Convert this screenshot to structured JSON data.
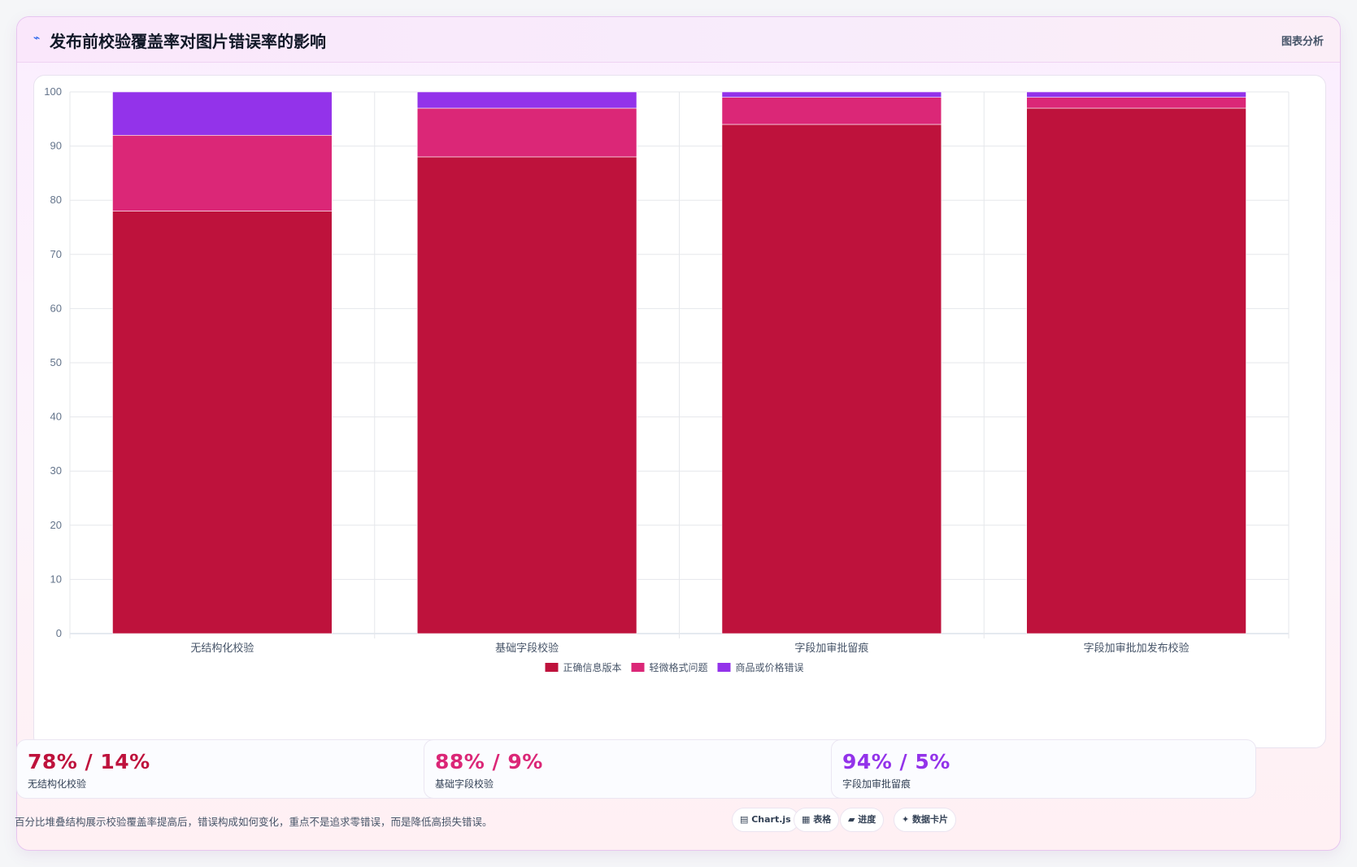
{
  "header": {
    "icon": "⌁",
    "title": "发布前校验覆盖率对图片错误率的影响",
    "tag": "图表分析"
  },
  "chart_data": {
    "type": "bar",
    "stacked": true,
    "categories": [
      "无结构化校验",
      "基础字段校验",
      "字段加审批留痕",
      "字段加审批加发布校验"
    ],
    "series": [
      {
        "name": "正确信息版本",
        "color": "#be123c",
        "values": [
          78,
          88,
          94,
          97
        ]
      },
      {
        "name": "轻微格式问题",
        "color": "#db2777",
        "values": [
          14,
          9,
          5,
          2
        ]
      },
      {
        "name": "商品或价格错误",
        "color": "#9333ea",
        "values": [
          8,
          3,
          1,
          1
        ]
      }
    ],
    "ylim": [
      0,
      100
    ],
    "yticks": [
      0,
      10,
      20,
      30,
      40,
      50,
      60,
      70,
      80,
      90,
      100
    ],
    "grid": true,
    "legend_position": "bottom"
  },
  "stats": [
    {
      "value": "78% / 14%",
      "label": "无结构化校验",
      "color": "#be123c"
    },
    {
      "value": "88% / 9%",
      "label": "基础字段校验",
      "color": "#db2777"
    },
    {
      "value": "94% / 5%",
      "label": "字段加审批留痕",
      "color": "#9333ea"
    }
  ],
  "footnote": "百分比堆叠结构展示校验覆盖率提高后，错误构成如何变化，重点不是追求零错误，而是降低高损失错误。",
  "chips": [
    {
      "label": "▤ Chart.js",
      "icon": "chart-icon"
    },
    {
      "label": "▦ 表格",
      "icon": "table-icon"
    },
    {
      "label": "▰ 进度",
      "icon": "progress-icon"
    },
    {
      "label": "✦ 数据卡片",
      "icon": "card-icon"
    }
  ]
}
